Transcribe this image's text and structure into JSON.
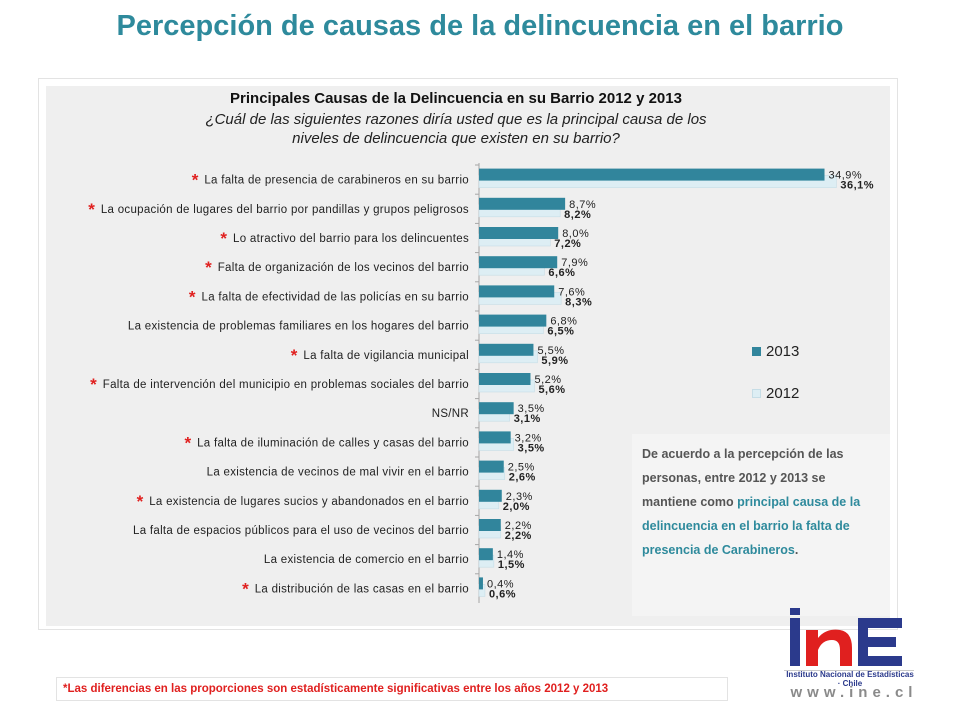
{
  "page": {
    "title": "Percepción de causas de la delincuencia en el barrio"
  },
  "note": {
    "part1": "De acuerdo a la percepción de las personas, entre 2012 y 2013 se mantiene como ",
    "part2": "principal causa de la delincuencia en el barrio la falta de presencia de Carabineros",
    "part3": "."
  },
  "footnote": "*Las diferencias en las proporciones son estadísticamente  significativas entre los años 2012 y 2013",
  "logo": {
    "subtitle": "Instituto Nacional de Estadísticas · Chile",
    "url": "www.ine.cl"
  },
  "colors": {
    "series_2013": "#31859c",
    "series_2012": "#ddeef4",
    "accent": "#2e8a9c",
    "significance": "#e0201f"
  },
  "chart_data": {
    "type": "bar",
    "orientation": "horizontal",
    "title": "Principales Causas de la Delincuencia en su Barrio 2012 y 2013",
    "subtitle_lines": [
      "¿Cuál de las siguientes razones diría usted que es la principal causa de los",
      "niveles de delincuencia que existen en su barrio?"
    ],
    "legend_position": "right",
    "grid": false,
    "xlim": [
      0,
      40
    ],
    "categories": [
      "La falta de presencia de carabineros en su barrio",
      "La ocupación de lugares del barrio por pandillas y grupos peligrosos",
      "Lo atractivo del barrio para los delincuentes",
      "Falta de organización de los vecinos del barrio",
      "La falta de efectividad de las policías en su barrio",
      "La existencia de problemas familiares en los hogares del barrio",
      "La falta de vigilancia municipal",
      "Falta de intervención del municipio en problemas sociales del barrio",
      "NS/NR",
      "La falta de iluminación de calles y casas del barrio",
      "La existencia de vecinos de mal vivir en el barrio",
      "La existencia de lugares sucios y abandonados en el barrio",
      "La falta de espacios públicos para el uso de vecinos del barrio",
      "La existencia de comercio en el barrio",
      "La distribución de las casas en el barrio"
    ],
    "significant": [
      true,
      true,
      true,
      true,
      true,
      false,
      true,
      true,
      false,
      true,
      false,
      true,
      false,
      false,
      true
    ],
    "significance_marker": "*",
    "series": [
      {
        "name": "2013",
        "values": [
          34.9,
          8.7,
          8.0,
          7.9,
          7.6,
          6.8,
          5.5,
          5.2,
          3.5,
          3.2,
          2.5,
          2.3,
          2.2,
          1.4,
          0.4
        ],
        "labels": [
          "34,9%",
          "8,7%",
          "8,0%",
          "7,9%",
          "7,6%",
          "6,8%",
          "5,5%",
          "5,2%",
          "3,5%",
          "3,2%",
          "2,5%",
          "2,3%",
          "2,2%",
          "1,4%",
          "0,4%"
        ]
      },
      {
        "name": "2012",
        "values": [
          36.1,
          8.2,
          7.2,
          6.6,
          8.3,
          6.5,
          5.9,
          5.6,
          3.1,
          3.5,
          2.6,
          2.0,
          2.2,
          1.5,
          0.6
        ],
        "labels": [
          "36,1%",
          "8,2%",
          "7,2%",
          "6,6%",
          "8,3%",
          "6,5%",
          "5,9%",
          "5,6%",
          "3,1%",
          "3,5%",
          "2,6%",
          "2,0%",
          "2,2%",
          "1,5%",
          "0,6%"
        ]
      }
    ]
  }
}
